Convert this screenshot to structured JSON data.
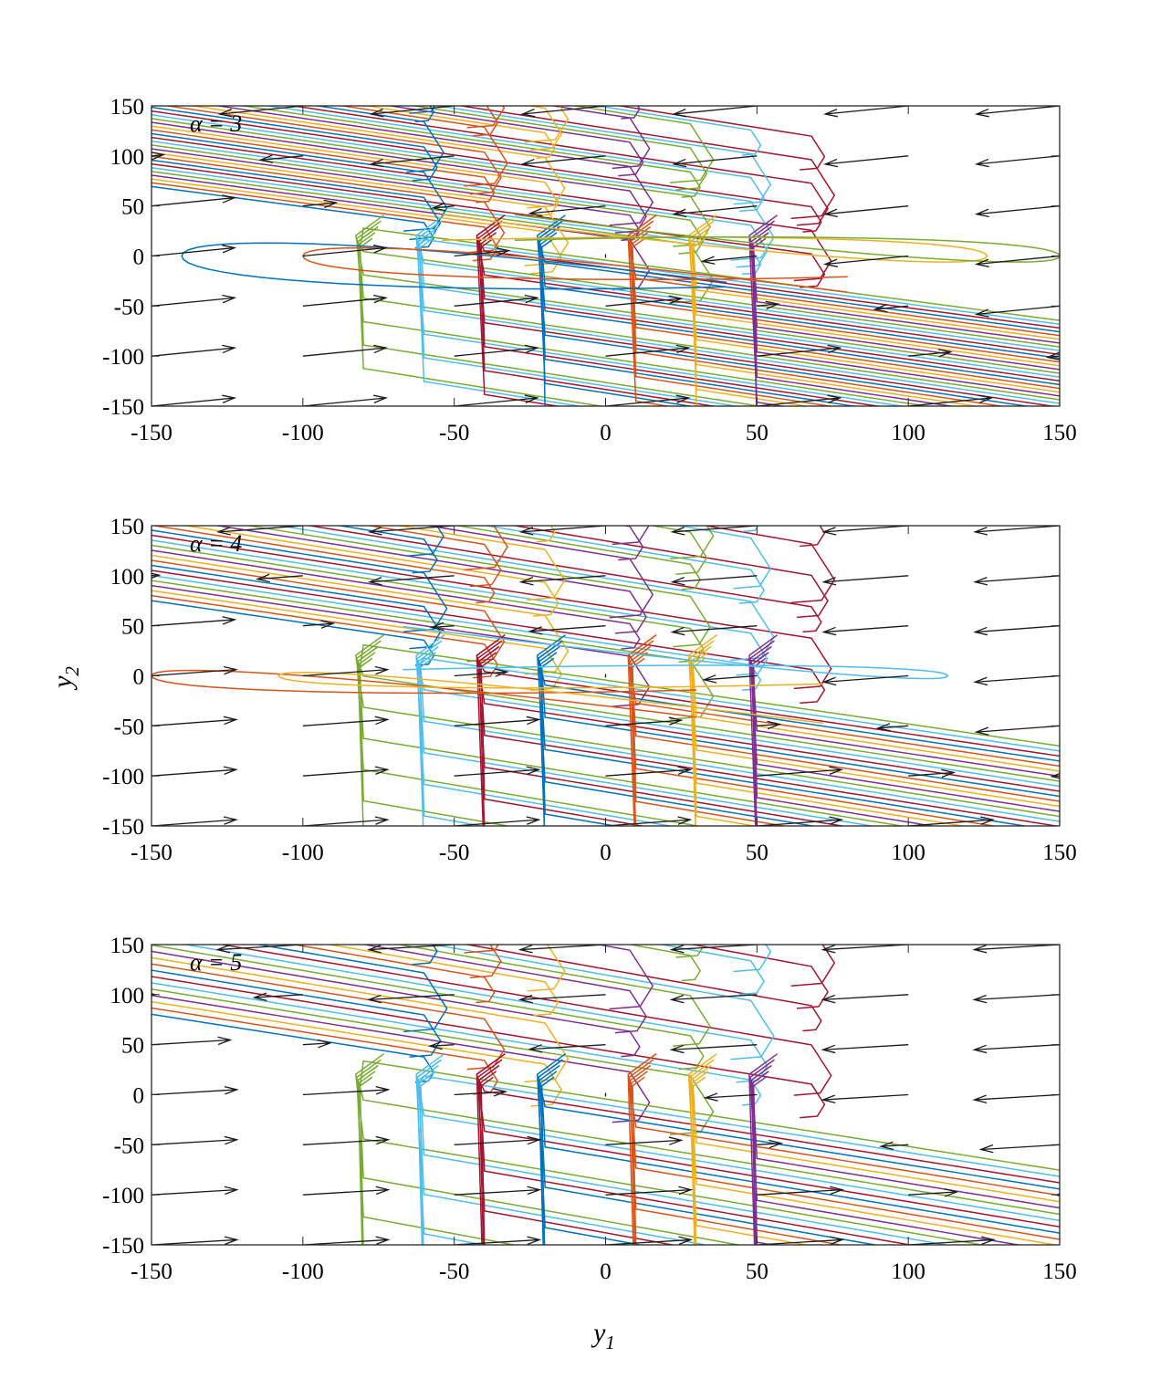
{
  "chart_data": [
    {
      "type": "line",
      "title": "",
      "panel_label": "α = 3",
      "alpha": 3,
      "xlabel": "",
      "ylabel": "",
      "xlim": [
        -150,
        150
      ],
      "ylim": [
        -150,
        150
      ],
      "xticks": [
        -150,
        -100,
        -50,
        0,
        50,
        100,
        150
      ],
      "yticks": [
        -150,
        -100,
        -50,
        0,
        50,
        100,
        150
      ],
      "x_tick_labels": [
        "-150",
        "-100",
        "-50",
        "0",
        "50",
        "100",
        "150"
      ],
      "y_tick_labels": [
        "150",
        "100",
        "50",
        "0",
        "-50",
        "-100",
        "-150"
      ],
      "grid": false,
      "series_description": "phase-plane trajectories (y1, y2) with quiver vector field",
      "trajectory_start_x": [
        -80,
        -60,
        -40,
        -20,
        10,
        30,
        50,
        70,
        100,
        150
      ]
    },
    {
      "type": "line",
      "title": "",
      "panel_label": "α = 4",
      "alpha": 4,
      "xlabel": "",
      "ylabel": "y2",
      "xlim": [
        -150,
        150
      ],
      "ylim": [
        -150,
        150
      ],
      "xticks": [
        -150,
        -100,
        -50,
        0,
        50,
        100,
        150
      ],
      "yticks": [
        -150,
        -100,
        -50,
        0,
        50,
        100,
        150
      ],
      "x_tick_labels": [
        "-150",
        "-100",
        "-50",
        "0",
        "50",
        "100",
        "150"
      ],
      "y_tick_labels": [
        "150",
        "100",
        "50",
        "0",
        "-50",
        "-100",
        "-150"
      ],
      "grid": false,
      "series_description": "phase-plane trajectories (y1, y2) with quiver vector field",
      "trajectory_start_x": [
        -80,
        -60,
        -40,
        -20,
        10,
        30,
        50,
        70,
        100,
        150
      ]
    },
    {
      "type": "line",
      "title": "",
      "panel_label": "α = 5",
      "alpha": 5,
      "xlabel": "y1",
      "ylabel": "",
      "xlim": [
        -150,
        150
      ],
      "ylim": [
        -150,
        150
      ],
      "xticks": [
        -150,
        -100,
        -50,
        0,
        50,
        100,
        150
      ],
      "yticks": [
        -150,
        -100,
        -50,
        0,
        50,
        100,
        150
      ],
      "x_tick_labels": [
        "-150",
        "-100",
        "-50",
        "0",
        "50",
        "100",
        "150"
      ],
      "y_tick_labels": [
        "150",
        "100",
        "50",
        "0",
        "-50",
        "-100",
        "-150"
      ],
      "grid": false,
      "series_description": "phase-plane trajectories (y1, y2) with quiver vector field",
      "trajectory_start_x": [
        -80,
        -60,
        -40,
        -20,
        10,
        30,
        50,
        70,
        100,
        150
      ]
    }
  ],
  "axis_titles": {
    "x_main": "y",
    "x_sub": "1",
    "y_main": "y",
    "y_sub": "2"
  },
  "colors": [
    "#0072BD",
    "#D95319",
    "#EDB120",
    "#7E2F8E",
    "#77AC30",
    "#4DBEEE",
    "#A2142F"
  ],
  "arrow_color": "#1a1a1a"
}
